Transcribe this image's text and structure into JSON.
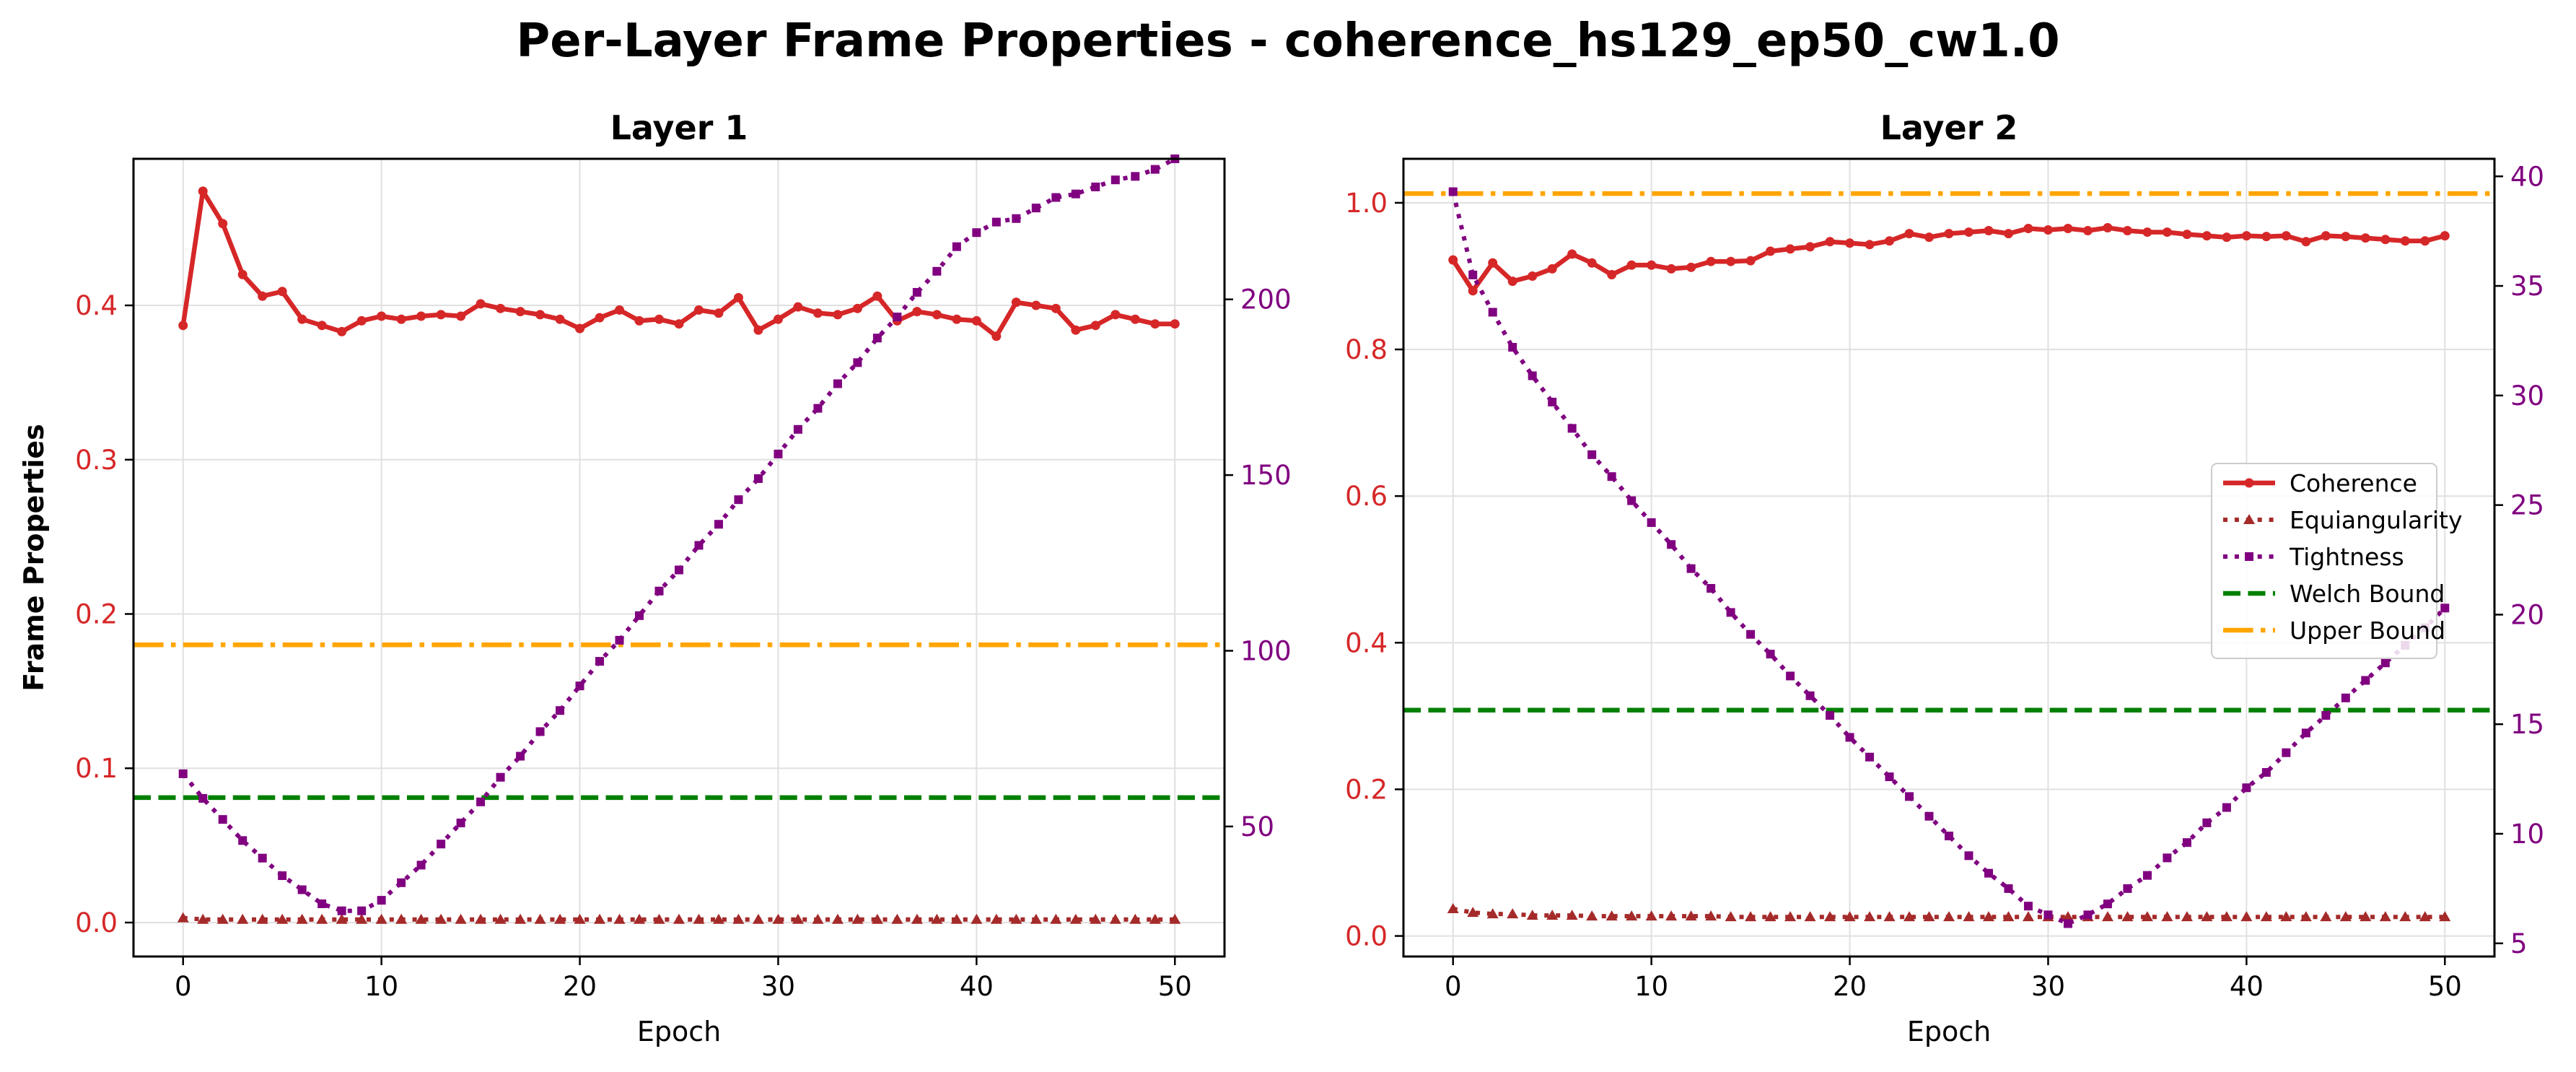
{
  "title": "Per-Layer Frame Properties - coherence_hs129_ep50_cw1.0",
  "chart_data": [
    {
      "type": "line",
      "title": "Layer 1",
      "xlabel": "Epoch",
      "ylabel": "Frame Properties",
      "xlim": [
        -2.5,
        52.5
      ],
      "ylim": [
        -0.022,
        0.495
      ],
      "y2lim": [
        13,
        240
      ],
      "xticks": [
        "0",
        "10",
        "20",
        "30",
        "40",
        "50"
      ],
      "yticks": [
        "0.0",
        "0.1",
        "0.2",
        "0.3",
        "0.4"
      ],
      "y2ticks": [
        "50",
        "100",
        "150",
        "200"
      ],
      "grid": true,
      "series": [
        {
          "name": "Coherence",
          "axis": "left",
          "color": "#d62728",
          "style": "solid",
          "marker": "circle",
          "x": [
            0,
            1,
            2,
            3,
            4,
            5,
            6,
            7,
            8,
            9,
            10,
            11,
            12,
            13,
            14,
            15,
            16,
            17,
            18,
            19,
            20,
            21,
            22,
            23,
            24,
            25,
            26,
            27,
            28,
            29,
            30,
            31,
            32,
            33,
            34,
            35,
            36,
            37,
            38,
            39,
            40,
            41,
            42,
            43,
            44,
            45,
            46,
            47,
            48,
            49,
            50
          ],
          "values": [
            0.387,
            0.474,
            0.453,
            0.42,
            0.406,
            0.409,
            0.391,
            0.387,
            0.383,
            0.39,
            0.393,
            0.391,
            0.393,
            0.394,
            0.393,
            0.401,
            0.398,
            0.396,
            0.394,
            0.391,
            0.385,
            0.392,
            0.397,
            0.39,
            0.391,
            0.388,
            0.397,
            0.395,
            0.405,
            0.384,
            0.391,
            0.399,
            0.395,
            0.394,
            0.398,
            0.406,
            0.39,
            0.396,
            0.394,
            0.391,
            0.39,
            0.38,
            0.402,
            0.4,
            0.398,
            0.384,
            0.387,
            0.394,
            0.391,
            0.388,
            0.388
          ]
        },
        {
          "name": "Equiangularity",
          "axis": "left",
          "color": "#a52a2a",
          "style": "dotted",
          "marker": "triangle",
          "x": [
            0,
            1,
            2,
            3,
            4,
            5,
            6,
            7,
            8,
            9,
            10,
            11,
            12,
            13,
            14,
            15,
            16,
            17,
            18,
            19,
            20,
            21,
            22,
            23,
            24,
            25,
            26,
            27,
            28,
            29,
            30,
            31,
            32,
            33,
            34,
            35,
            36,
            37,
            38,
            39,
            40,
            41,
            42,
            43,
            44,
            45,
            46,
            47,
            48,
            49,
            50
          ],
          "values": [
            0.003,
            0.002,
            0.002,
            0.002,
            0.002,
            0.002,
            0.002,
            0.002,
            0.002,
            0.002,
            0.002,
            0.002,
            0.002,
            0.002,
            0.002,
            0.002,
            0.002,
            0.002,
            0.002,
            0.002,
            0.002,
            0.002,
            0.002,
            0.002,
            0.002,
            0.002,
            0.002,
            0.002,
            0.002,
            0.002,
            0.002,
            0.002,
            0.002,
            0.002,
            0.002,
            0.002,
            0.002,
            0.002,
            0.002,
            0.002,
            0.002,
            0.002,
            0.002,
            0.002,
            0.002,
            0.002,
            0.002,
            0.002,
            0.002,
            0.002,
            0.002
          ]
        },
        {
          "name": "Tightness",
          "axis": "right",
          "color": "#800080",
          "style": "dotted",
          "marker": "square",
          "x": [
            0,
            1,
            2,
            3,
            4,
            5,
            6,
            7,
            8,
            9,
            10,
            11,
            12,
            13,
            14,
            15,
            16,
            17,
            18,
            19,
            20,
            21,
            22,
            23,
            24,
            25,
            26,
            27,
            28,
            29,
            30,
            31,
            32,
            33,
            34,
            35,
            36,
            37,
            38,
            39,
            40,
            41,
            42,
            43,
            44,
            45,
            46,
            47,
            48,
            49,
            50
          ],
          "values": [
            65,
            58,
            52,
            46,
            41,
            36,
            32,
            28,
            26,
            26,
            29,
            34,
            39,
            45,
            51,
            57,
            64,
            70,
            77,
            83,
            90,
            97,
            103,
            110,
            117,
            123,
            130,
            136,
            143,
            149,
            156,
            163,
            169,
            176,
            182,
            189,
            195,
            202,
            208,
            215,
            219,
            222,
            223,
            226,
            229,
            230,
            232,
            234,
            235,
            237,
            240
          ]
        }
      ],
      "reference_lines": [
        {
          "name": "Welch Bound",
          "value": 0.081,
          "color": "#008000",
          "style": "dashed"
        },
        {
          "name": "Upper Bound",
          "value": 0.18,
          "color": "#ffa500",
          "style": "dashdot"
        }
      ]
    },
    {
      "type": "line",
      "title": "Layer 2",
      "xlabel": "Epoch",
      "ylabel": "",
      "xlim": [
        -2.5,
        52.5
      ],
      "ylim": [
        -0.028,
        1.06
      ],
      "y2lim": [
        4.4,
        40.8
      ],
      "xticks": [
        "0",
        "10",
        "20",
        "30",
        "40",
        "50"
      ],
      "yticks": [
        "0.0",
        "0.2",
        "0.4",
        "0.6",
        "0.8",
        "1.0"
      ],
      "y2ticks": [
        "5",
        "10",
        "15",
        "20",
        "25",
        "30",
        "35",
        "40"
      ],
      "grid": true,
      "series": [
        {
          "name": "Coherence",
          "axis": "left",
          "color": "#d62728",
          "style": "solid",
          "marker": "circle",
          "x": [
            0,
            1,
            2,
            3,
            4,
            5,
            6,
            7,
            8,
            9,
            10,
            11,
            12,
            13,
            14,
            15,
            16,
            17,
            18,
            19,
            20,
            21,
            22,
            23,
            24,
            25,
            26,
            27,
            28,
            29,
            30,
            31,
            32,
            33,
            34,
            35,
            36,
            37,
            38,
            39,
            40,
            41,
            42,
            43,
            44,
            45,
            46,
            47,
            48,
            49,
            50
          ],
          "values": [
            0.922,
            0.88,
            0.918,
            0.893,
            0.9,
            0.91,
            0.93,
            0.918,
            0.902,
            0.915,
            0.915,
            0.91,
            0.912,
            0.92,
            0.92,
            0.921,
            0.934,
            0.937,
            0.94,
            0.947,
            0.945,
            0.943,
            0.948,
            0.958,
            0.953,
            0.958,
            0.96,
            0.962,
            0.958,
            0.965,
            0.963,
            0.965,
            0.962,
            0.966,
            0.962,
            0.96,
            0.96,
            0.957,
            0.955,
            0.953,
            0.955,
            0.954,
            0.955,
            0.947,
            0.955,
            0.954,
            0.952,
            0.95,
            0.948,
            0.948,
            0.955
          ]
        },
        {
          "name": "Equiangularity",
          "axis": "left",
          "color": "#a52a2a",
          "style": "dotted",
          "marker": "triangle",
          "x": [
            0,
            1,
            2,
            3,
            4,
            5,
            6,
            7,
            8,
            9,
            10,
            11,
            12,
            13,
            14,
            15,
            16,
            17,
            18,
            19,
            20,
            21,
            22,
            23,
            24,
            25,
            26,
            27,
            28,
            29,
            30,
            31,
            32,
            33,
            34,
            35,
            36,
            37,
            38,
            39,
            40,
            41,
            42,
            43,
            44,
            45,
            46,
            47,
            48,
            49,
            50
          ],
          "values": [
            0.037,
            0.032,
            0.03,
            0.03,
            0.028,
            0.028,
            0.028,
            0.027,
            0.027,
            0.027,
            0.027,
            0.027,
            0.027,
            0.027,
            0.026,
            0.026,
            0.026,
            0.026,
            0.026,
            0.026,
            0.026,
            0.026,
            0.026,
            0.026,
            0.026,
            0.026,
            0.026,
            0.026,
            0.026,
            0.026,
            0.026,
            0.026,
            0.026,
            0.026,
            0.026,
            0.026,
            0.026,
            0.026,
            0.026,
            0.026,
            0.026,
            0.026,
            0.026,
            0.026,
            0.026,
            0.026,
            0.026,
            0.026,
            0.026,
            0.026,
            0.026
          ]
        },
        {
          "name": "Tightness",
          "axis": "right",
          "color": "#800080",
          "style": "dotted",
          "marker": "square",
          "x": [
            0,
            1,
            2,
            3,
            4,
            5,
            6,
            7,
            8,
            9,
            10,
            11,
            12,
            13,
            14,
            15,
            16,
            17,
            18,
            19,
            20,
            21,
            22,
            23,
            24,
            25,
            26,
            27,
            28,
            29,
            30,
            31,
            32,
            33,
            34,
            35,
            36,
            37,
            38,
            39,
            40,
            41,
            42,
            43,
            44,
            45,
            46,
            47,
            48,
            49,
            50
          ],
          "values": [
            39.3,
            35.5,
            33.8,
            32.2,
            30.9,
            29.7,
            28.5,
            27.3,
            26.3,
            25.2,
            24.2,
            23.2,
            22.1,
            21.2,
            20.1,
            19.1,
            18.2,
            17.2,
            16.3,
            15.4,
            14.4,
            13.5,
            12.6,
            11.7,
            10.8,
            9.9,
            9.0,
            8.2,
            7.5,
            6.7,
            6.3,
            5.9,
            6.3,
            6.8,
            7.5,
            8.1,
            8.9,
            9.6,
            10.5,
            11.2,
            12.1,
            12.8,
            13.7,
            14.6,
            15.4,
            16.2,
            17.0,
            17.8,
            18.6,
            19.4,
            20.3
          ]
        }
      ],
      "reference_lines": [
        {
          "name": "Welch Bound",
          "value": 0.308,
          "color": "#008000",
          "style": "dashed"
        },
        {
          "name": "Upper Bound",
          "value": 1.0126,
          "color": "#ffa500",
          "style": "dashdot"
        }
      ],
      "legend": {
        "placement": "center-right",
        "entries": [
          "Coherence",
          "Equiangularity",
          "Tightness",
          "Welch Bound",
          "Upper Bound"
        ]
      }
    }
  ]
}
